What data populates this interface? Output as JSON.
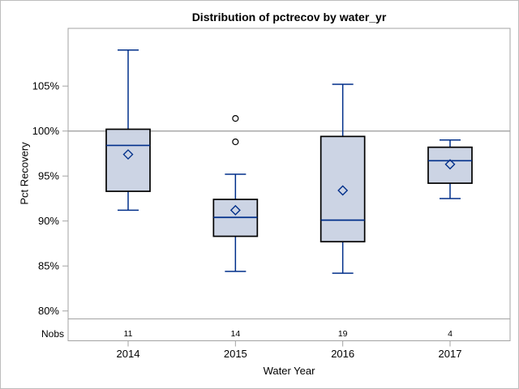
{
  "window": {
    "background": "#ffffff",
    "border_color": "#bdbdbd"
  },
  "chart_data": {
    "type": "boxplot",
    "title": "Distribution of pctrecov by water_yr",
    "xlabel": "Water Year",
    "ylabel": "Pct Recovery",
    "categories": [
      "2014",
      "2015",
      "2016",
      "2017"
    ],
    "y_ticks": [
      80,
      85,
      90,
      95,
      100,
      105
    ],
    "y_tick_labels": [
      "80%",
      "85%",
      "90%",
      "95%",
      "100%",
      "105%"
    ],
    "ylim": [
      79,
      111.5
    ],
    "grid": false,
    "legend": "none",
    "reference_line_y": 100,
    "nobs_row": {
      "label": "Nobs",
      "values": [
        "11",
        "14",
        "19",
        "4"
      ]
    },
    "series": [
      {
        "category": "2014",
        "nobs": 11,
        "whisker_low": 91.2,
        "q1": 93.3,
        "median": 98.4,
        "q3": 100.2,
        "whisker_high": 109.0,
        "mean": 97.4,
        "outliers": []
      },
      {
        "category": "2015",
        "nobs": 14,
        "whisker_low": 84.4,
        "q1": 88.3,
        "median": 90.4,
        "q3": 92.4,
        "whisker_high": 95.2,
        "mean": 91.2,
        "outliers": [
          101.4,
          98.8
        ]
      },
      {
        "category": "2016",
        "nobs": 19,
        "whisker_low": 84.2,
        "q1": 87.7,
        "median": 90.1,
        "q3": 99.4,
        "whisker_high": 105.2,
        "mean": 93.4,
        "outliers": []
      },
      {
        "category": "2017",
        "nobs": 4,
        "whisker_low": 92.5,
        "q1": 94.2,
        "median": 96.7,
        "q3": 98.2,
        "whisker_high": 99.0,
        "mean": 96.3,
        "outliers": []
      }
    ],
    "colors": {
      "box_fill": "#ccd4e4",
      "box_stroke": "#000000",
      "line": "#002f8a",
      "axis": "#a3a3a3",
      "reference_line": "#a3a3a3",
      "outlier_stroke": "#000000",
      "text": "#000000"
    }
  }
}
